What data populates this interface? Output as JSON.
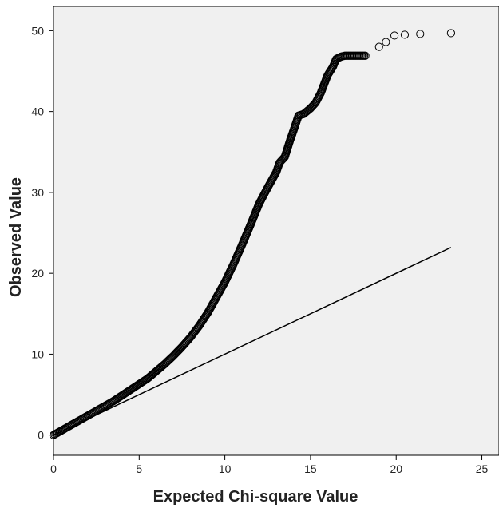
{
  "chart_data": {
    "type": "scatter",
    "xlabel": "Expected Chi-square Value",
    "ylabel": "Observed Value",
    "xlim": [
      0,
      26
    ],
    "ylim": [
      -2.5,
      53
    ],
    "x_ticks": [
      0,
      5,
      10,
      15,
      20,
      25
    ],
    "y_ticks": [
      0,
      10,
      20,
      30,
      40,
      50
    ],
    "grid": false,
    "colors": {
      "plot_background": "#f0f0f0",
      "marker_stroke": "#000000",
      "reference_line": "#000000",
      "axes": "#000000"
    },
    "series": [
      {
        "marker": "open-circle",
        "points": [
          [
            0.0,
            0.0
          ],
          [
            0.5,
            0.6
          ],
          [
            1.0,
            1.2
          ],
          [
            1.5,
            1.8
          ],
          [
            2.0,
            2.4
          ],
          [
            2.5,
            3.0
          ],
          [
            3.0,
            3.6
          ],
          [
            3.5,
            4.2
          ],
          [
            4.0,
            4.9
          ],
          [
            4.5,
            5.6
          ],
          [
            5.0,
            6.3
          ],
          [
            5.5,
            7.0
          ],
          [
            6.0,
            7.9
          ],
          [
            6.5,
            8.8
          ],
          [
            7.0,
            9.8
          ],
          [
            7.5,
            10.9
          ],
          [
            8.0,
            12.1
          ],
          [
            8.5,
            13.5
          ],
          [
            9.0,
            15.1
          ],
          [
            9.5,
            17.0
          ],
          [
            10.0,
            18.9
          ],
          [
            10.5,
            21.1
          ],
          [
            11.0,
            23.5
          ],
          [
            11.5,
            26.0
          ],
          [
            12.0,
            28.6
          ],
          [
            12.5,
            30.6
          ],
          [
            13.0,
            32.5
          ],
          [
            13.2,
            33.7
          ],
          [
            13.5,
            34.4
          ],
          [
            13.8,
            36.4
          ],
          [
            14.0,
            37.6
          ],
          [
            14.3,
            39.5
          ],
          [
            14.6,
            39.7
          ],
          [
            15.0,
            40.4
          ],
          [
            15.3,
            41.1
          ],
          [
            15.6,
            42.3
          ],
          [
            16.0,
            44.5
          ],
          [
            16.3,
            45.5
          ],
          [
            16.5,
            46.5
          ],
          [
            16.8,
            46.8
          ],
          [
            17.0,
            46.9
          ],
          [
            17.5,
            46.9
          ],
          [
            18.2,
            46.9
          ],
          [
            19.0,
            48.0
          ],
          [
            19.4,
            48.6
          ],
          [
            19.9,
            49.4
          ],
          [
            20.5,
            49.5
          ],
          [
            21.4,
            49.6
          ],
          [
            23.2,
            49.7
          ]
        ]
      }
    ],
    "reference_line": {
      "from": [
        0.0,
        0.0
      ],
      "to": [
        23.2,
        23.2
      ]
    }
  }
}
